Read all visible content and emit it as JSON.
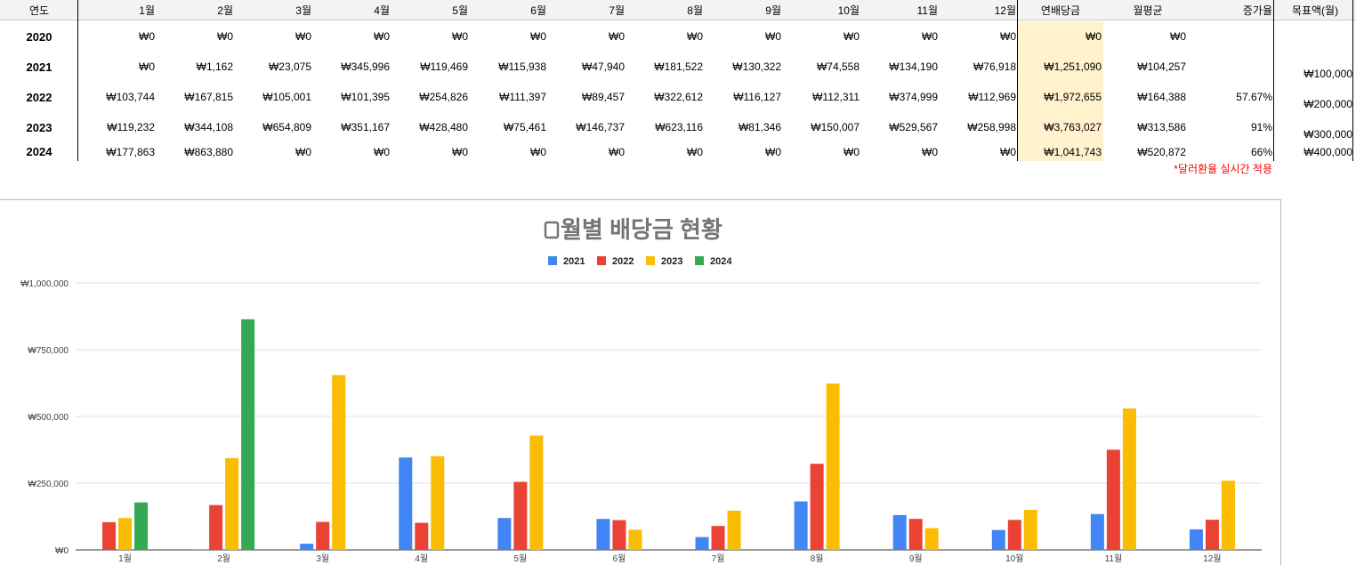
{
  "table": {
    "headers": {
      "year": "연도",
      "months": [
        "1월",
        "2월",
        "3월",
        "4월",
        "5월",
        "6월",
        "7월",
        "8월",
        "9월",
        "10월",
        "11월",
        "12월"
      ],
      "annual": "연배당금",
      "monthly_avg": "월평균",
      "growth": "증가율",
      "goal": "목표액(월)"
    },
    "rows": [
      {
        "year": "2020",
        "months": [
          "₩0",
          "₩0",
          "₩0",
          "₩0",
          "₩0",
          "₩0",
          "₩0",
          "₩0",
          "₩0",
          "₩0",
          "₩0",
          "₩0"
        ],
        "annual": "₩0",
        "avg": "₩0",
        "growth": ""
      },
      {
        "year": "2021",
        "months": [
          "₩0",
          "₩1,162",
          "₩23,075",
          "₩345,996",
          "₩119,469",
          "₩115,938",
          "₩47,940",
          "₩181,522",
          "₩130,322",
          "₩74,558",
          "₩134,190",
          "₩76,918"
        ],
        "annual": "₩1,251,090",
        "avg": "₩104,257",
        "growth": ""
      },
      {
        "year": "2022",
        "months": [
          "₩103,744",
          "₩167,815",
          "₩105,001",
          "₩101,395",
          "₩254,826",
          "₩111,397",
          "₩89,457",
          "₩322,612",
          "₩116,127",
          "₩112,311",
          "₩374,999",
          "₩112,969"
        ],
        "annual": "₩1,972,655",
        "avg": "₩164,388",
        "growth": "57.67%"
      },
      {
        "year": "2023",
        "months": [
          "₩119,232",
          "₩344,108",
          "₩654,809",
          "₩351,167",
          "₩428,480",
          "₩75,461",
          "₩146,737",
          "₩623,116",
          "₩81,346",
          "₩150,007",
          "₩529,567",
          "₩258,998"
        ],
        "annual": "₩3,763,027",
        "avg": "₩313,586",
        "growth": "91%"
      },
      {
        "year": "2024",
        "months": [
          "₩177,863",
          "₩863,880",
          "₩0",
          "₩0",
          "₩0",
          "₩0",
          "₩0",
          "₩0",
          "₩0",
          "₩0",
          "₩0",
          "₩0"
        ],
        "annual": "₩1,041,743",
        "avg": "₩520,872",
        "growth": "66%"
      }
    ],
    "goals": [
      "₩100,000",
      "₩200,000",
      "₩300,000",
      "₩400,000"
    ],
    "note": "*달러환율 실시간 적용"
  },
  "colors": {
    "2021": "#4285f4",
    "2022": "#ea4335",
    "2023": "#fbbc04",
    "2024": "#34a853",
    "annual_highlight": "#fff2cc",
    "note": "#ff0000"
  },
  "chart_data": {
    "type": "bar",
    "title": "월별 배당금 현황",
    "title_icon": "calendar-icon",
    "categories": [
      "1월",
      "2월",
      "3월",
      "4월",
      "5월",
      "6월",
      "7월",
      "8월",
      "9월",
      "10월",
      "11월",
      "12월"
    ],
    "series": [
      {
        "name": "2021",
        "values": [
          0,
          1162,
          23075,
          345996,
          119469,
          115938,
          47940,
          181522,
          130322,
          74558,
          134190,
          76918
        ]
      },
      {
        "name": "2022",
        "values": [
          103744,
          167815,
          105001,
          101395,
          254826,
          111397,
          89457,
          322612,
          116127,
          112311,
          374999,
          112969
        ]
      },
      {
        "name": "2023",
        "values": [
          119232,
          344108,
          654809,
          351167,
          428480,
          75461,
          146737,
          623116,
          81346,
          150007,
          529567,
          258998
        ]
      },
      {
        "name": "2024",
        "values": [
          177863,
          863880,
          0,
          0,
          0,
          0,
          0,
          0,
          0,
          0,
          0,
          0
        ]
      }
    ],
    "yticks": [
      0,
      250000,
      500000,
      750000,
      1000000
    ],
    "ytick_labels": [
      "₩0",
      "₩250,000",
      "₩500,000",
      "₩750,000",
      "₩1,000,000"
    ],
    "ylim": [
      0,
      1000000
    ],
    "legend": "top",
    "grid": true
  }
}
